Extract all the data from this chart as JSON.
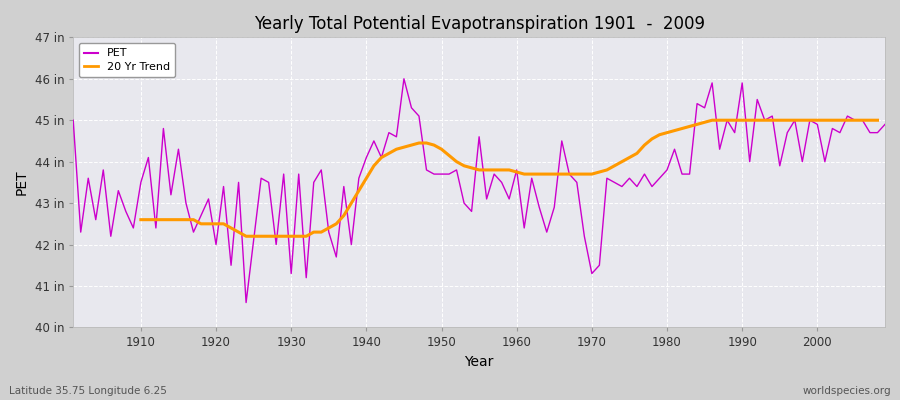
{
  "title": "Yearly Total Potential Evapotranspiration 1901  -  2009",
  "xlabel": "Year",
  "ylabel": "PET",
  "bottom_left": "Latitude 35.75 Longitude 6.25",
  "bottom_right": "worldspecies.org",
  "fig_bg_color": "#d0d0d0",
  "plot_bg_color": "#e8e8ee",
  "pet_color": "#cc00cc",
  "trend_color": "#ff9900",
  "ylim": [
    40,
    47
  ],
  "yticks": [
    40,
    41,
    42,
    43,
    44,
    45,
    46,
    47
  ],
  "ytick_labels": [
    "40 in",
    "41 in",
    "42 in",
    "43 in",
    "44 in",
    "45 in",
    "46 in",
    "47 in"
  ],
  "xlim": [
    1901,
    2009
  ],
  "xticks": [
    1910,
    1920,
    1930,
    1940,
    1950,
    1960,
    1970,
    1980,
    1990,
    2000
  ],
  "years": [
    1901,
    1902,
    1903,
    1904,
    1905,
    1906,
    1907,
    1908,
    1909,
    1910,
    1911,
    1912,
    1913,
    1914,
    1915,
    1916,
    1917,
    1918,
    1919,
    1920,
    1921,
    1922,
    1923,
    1924,
    1925,
    1926,
    1927,
    1928,
    1929,
    1930,
    1931,
    1932,
    1933,
    1934,
    1935,
    1936,
    1937,
    1938,
    1939,
    1940,
    1941,
    1942,
    1943,
    1944,
    1945,
    1946,
    1947,
    1948,
    1949,
    1950,
    1951,
    1952,
    1953,
    1954,
    1955,
    1956,
    1957,
    1958,
    1959,
    1960,
    1961,
    1962,
    1963,
    1964,
    1965,
    1966,
    1967,
    1968,
    1969,
    1970,
    1971,
    1972,
    1973,
    1974,
    1975,
    1976,
    1977,
    1978,
    1979,
    1980,
    1981,
    1982,
    1983,
    1984,
    1985,
    1986,
    1987,
    1988,
    1989,
    1990,
    1991,
    1992,
    1993,
    1994,
    1995,
    1996,
    1997,
    1998,
    1999,
    2000,
    2001,
    2002,
    2003,
    2004,
    2005,
    2006,
    2007,
    2008,
    2009
  ],
  "pet": [
    45.0,
    42.3,
    43.6,
    42.6,
    43.8,
    42.2,
    43.3,
    42.8,
    42.4,
    43.5,
    44.1,
    42.4,
    44.8,
    43.2,
    44.3,
    43.0,
    42.3,
    42.7,
    43.1,
    42.0,
    43.4,
    41.5,
    43.5,
    40.6,
    42.1,
    43.6,
    43.5,
    42.0,
    43.7,
    41.3,
    43.7,
    41.2,
    43.5,
    43.8,
    42.3,
    41.7,
    43.4,
    42.0,
    43.6,
    44.1,
    44.5,
    44.1,
    44.7,
    44.6,
    46.0,
    45.3,
    45.1,
    43.8,
    43.7,
    43.7,
    43.7,
    43.8,
    43.0,
    42.8,
    44.6,
    43.1,
    43.7,
    43.5,
    43.1,
    43.8,
    42.4,
    43.6,
    42.9,
    42.3,
    42.9,
    44.5,
    43.7,
    43.5,
    42.2,
    41.3,
    41.5,
    43.6,
    43.5,
    43.4,
    43.6,
    43.4,
    43.7,
    43.4,
    43.6,
    43.8,
    44.3,
    43.7,
    43.7,
    45.4,
    45.3,
    45.9,
    44.3,
    45.0,
    44.7,
    45.9,
    44.0,
    45.5,
    45.0,
    45.1,
    43.9,
    44.7,
    45.0,
    44.0,
    45.0,
    44.9,
    44.0,
    44.8,
    44.7,
    45.1,
    45.0,
    45.0,
    44.7,
    44.7,
    44.9
  ],
  "trend": [
    null,
    null,
    null,
    null,
    null,
    null,
    null,
    null,
    null,
    42.6,
    42.6,
    42.6,
    42.6,
    42.6,
    42.6,
    42.6,
    42.6,
    42.5,
    42.5,
    42.5,
    42.5,
    42.4,
    42.3,
    42.2,
    42.2,
    42.2,
    42.2,
    42.2,
    42.2,
    42.2,
    42.2,
    42.2,
    42.3,
    42.3,
    42.4,
    42.5,
    42.7,
    43.0,
    43.3,
    43.6,
    43.9,
    44.1,
    44.2,
    44.3,
    44.35,
    44.4,
    44.45,
    44.45,
    44.4,
    44.3,
    44.15,
    44.0,
    43.9,
    43.85,
    43.8,
    43.8,
    43.8,
    43.8,
    43.8,
    43.75,
    43.7,
    43.7,
    43.7,
    43.7,
    43.7,
    43.7,
    43.7,
    43.7,
    43.7,
    43.7,
    43.75,
    43.8,
    43.9,
    44.0,
    44.1,
    44.2,
    44.4,
    44.55,
    44.65,
    44.7,
    44.75,
    44.8,
    44.85,
    44.9,
    44.95,
    45.0,
    45.0,
    45.0,
    45.0,
    45.0,
    45.0,
    45.0,
    45.0,
    45.0,
    45.0,
    45.0,
    45.0,
    45.0,
    45.0,
    45.0,
    45.0,
    45.0,
    45.0,
    45.0,
    45.0,
    45.0,
    45.0,
    45.0
  ]
}
